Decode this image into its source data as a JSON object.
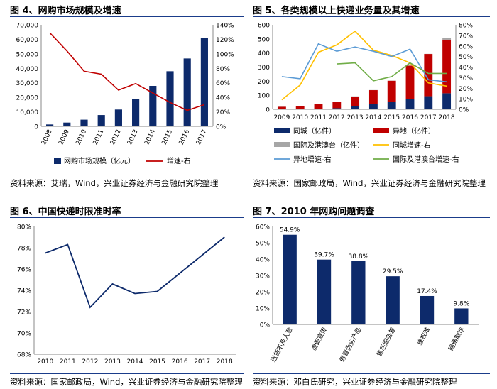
{
  "colors": {
    "navy": "#0d2a6b",
    "red": "#c00000",
    "gray": "#a6a6a6",
    "yellow": "#ffc000",
    "lightblue": "#5b9bd5",
    "green": "#70ad47",
    "title_rule": "#1a3c8a"
  },
  "fig4": {
    "title": "图 4、网购市场规模及增速",
    "source": "资料来源：艾瑞，Wind，兴业证券经济与金融研究院整理",
    "chart_data": {
      "type": "bar+line",
      "categories": [
        "2008",
        "2009",
        "2010",
        "2011",
        "2012",
        "2013",
        "2014",
        "2015",
        "2016",
        "2017"
      ],
      "series": [
        {
          "name": "网购市场规模（亿元）",
          "type": "bar",
          "axis": "left",
          "values": [
            1300,
            2600,
            4600,
            7800,
            11600,
            18900,
            27900,
            38000,
            46800,
            61000
          ]
        },
        {
          "name": "增速-右",
          "type": "line",
          "axis": "right",
          "values": [
            129,
            104,
            76,
            72,
            50,
            59,
            46,
            33,
            22,
            30
          ]
        }
      ],
      "ylim_left": [
        0,
        70000
      ],
      "yticks_left": [
        "0",
        "10,000",
        "20,000",
        "30,000",
        "40,000",
        "50,000",
        "60,000",
        "70,000"
      ],
      "ylim_right": [
        0,
        140
      ],
      "yticks_right": [
        "0%",
        "20%",
        "40%",
        "60%",
        "80%",
        "100%",
        "120%",
        "140%"
      ],
      "legend": [
        "网购市场规模（亿元）",
        "增速-右"
      ]
    }
  },
  "fig5": {
    "title": "图 5、各类规模以上快递业务量及其增速",
    "source": "资料来源：国家邮政局，Wind，兴业证券经济与金融研究院整理",
    "chart_data": {
      "type": "stacked-bar+line",
      "categories": [
        "2009",
        "2010",
        "2011",
        "2012",
        "2013",
        "2014",
        "2015",
        "2016",
        "2017",
        "2018"
      ],
      "series": [
        {
          "name": "同城（亿件）",
          "type": "bar",
          "axis": "left",
          "values": [
            3,
            4,
            5,
            8,
            23,
            36,
            53,
            75,
            93,
            114
          ]
        },
        {
          "name": "异地（亿件）",
          "type": "bar",
          "axis": "left",
          "values": [
            15,
            19,
            32,
            46,
            68,
            100,
            150,
            235,
            300,
            381
          ]
        },
        {
          "name": "国际及港澳台（亿件）",
          "type": "bar",
          "axis": "left",
          "values": [
            1,
            1,
            1,
            1,
            1,
            1,
            1,
            1,
            1,
            11
          ]
        },
        {
          "name": "同城增速-右",
          "type": "line",
          "axis": "right",
          "values": [
            9,
            23,
            54,
            61,
            74,
            56,
            51,
            44,
            25,
            22
          ]
        },
        {
          "name": "异地增速-右",
          "type": "line",
          "axis": "right",
          "values": [
            31,
            29,
            62,
            55,
            59,
            55,
            50,
            57,
            28,
            26
          ]
        },
        {
          "name": "国际及港澳台增速-右",
          "type": "line",
          "axis": "right",
          "values": [
            null,
            null,
            null,
            43,
            44,
            27,
            31,
            44,
            34,
            34
          ]
        }
      ],
      "ylim_left": [
        0,
        600
      ],
      "yticks_left": [
        "0",
        "100",
        "200",
        "300",
        "400",
        "500",
        "600"
      ],
      "ylim_right": [
        0,
        80
      ],
      "yticks_right": [
        "0%",
        "10%",
        "20%",
        "30%",
        "40%",
        "50%",
        "60%",
        "70%",
        "80%"
      ],
      "legend": [
        "同城（亿件）",
        "异地（亿件）",
        "国际及港澳台（亿件）",
        "同城增速-右",
        "异地增速-右",
        "国际及港澳台增速-右"
      ]
    }
  },
  "fig6": {
    "title": "图 6、中国快递时限准时率",
    "source": "资料来源：国家邮政局，Wind，兴业证券经济与金融研究院整理",
    "chart_data": {
      "type": "line",
      "categories": [
        "2010",
        "2011",
        "2012",
        "2013",
        "2014",
        "2015",
        "2016",
        "2017",
        "2018"
      ],
      "values": [
        77.5,
        78.3,
        72.4,
        74.6,
        73.7,
        73.9,
        75.6,
        77.3,
        79.0
      ],
      "ylim": [
        68,
        80
      ],
      "yticks": [
        "68%",
        "70%",
        "72%",
        "74%",
        "76%",
        "78%",
        "80%"
      ]
    }
  },
  "fig7": {
    "title": "图 7、2010 年网购问题调查",
    "source": "资料来源：邓白氏研究，兴业证券经济与金融研究院整理",
    "chart_data": {
      "type": "bar",
      "categories": [
        "送货不及人意",
        "虚假宣传",
        "假冒伪劣产品",
        "售后服务差",
        "维权难",
        "网络欺诈"
      ],
      "values": [
        54.9,
        39.7,
        38.8,
        29.5,
        17.4,
        9.8
      ],
      "labels": [
        "54.9%",
        "39.7%",
        "38.8%",
        "29.5%",
        "17.4%",
        "9.8%"
      ],
      "ylim": [
        0,
        60
      ],
      "yticks": [
        "0%",
        "10%",
        "20%",
        "30%",
        "40%",
        "50%",
        "60%"
      ]
    }
  }
}
